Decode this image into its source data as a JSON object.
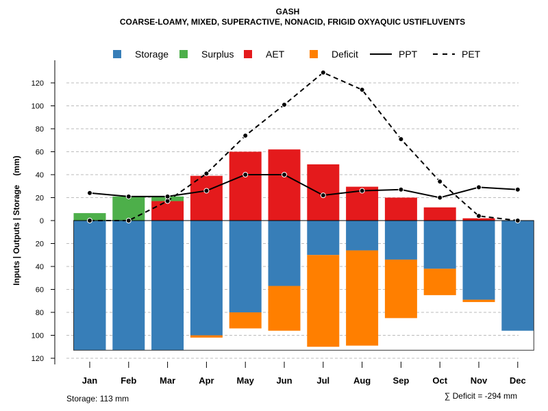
{
  "chart_data": {
    "type": "bar",
    "title": "GASH",
    "subtitle": "COARSE-LOAMY, MIXED, SUPERACTIVE, NONACID, FRIGID OXYAQUIC USTIFLUVENTS",
    "ylabel": "Inputs | Outputs | Storage    (mm)",
    "ylim": [
      -120,
      130
    ],
    "yticks": [
      120,
      100,
      80,
      60,
      40,
      20,
      0,
      20,
      40,
      60,
      80,
      100,
      120
    ],
    "categories": [
      "Jan",
      "Feb",
      "Mar",
      "Apr",
      "May",
      "Jun",
      "Jul",
      "Aug",
      "Sep",
      "Oct",
      "Nov",
      "Dec"
    ],
    "legend": [
      "Storage",
      "Surplus",
      "AET",
      "Deficit",
      "PPT",
      "PET"
    ],
    "legend_position": "top",
    "series": [
      {
        "name": "Storage",
        "color": "#377EB8",
        "values": [
          113,
          113,
          113,
          100,
          80,
          57,
          30,
          26,
          34,
          42,
          69,
          96
        ]
      },
      {
        "name": "Deficit",
        "color": "#FF7F00",
        "values": [
          0,
          0,
          0,
          2,
          14,
          39,
          80,
          83,
          51,
          23,
          2,
          0
        ]
      },
      {
        "name": "AET",
        "color": "#E41A1C",
        "values": [
          0,
          0,
          17,
          39,
          60,
          62,
          49,
          29.5,
          20,
          11.5,
          2,
          0
        ]
      },
      {
        "name": "Surplus",
        "color": "#4DAF4A",
        "values": [
          6.5,
          21,
          4,
          0,
          0,
          0,
          0,
          0,
          0,
          0,
          0,
          0
        ]
      },
      {
        "name": "PPT",
        "values": [
          24,
          21,
          21,
          26,
          40,
          40,
          22,
          26,
          27,
          20,
          29,
          27
        ]
      },
      {
        "name": "PET",
        "values": [
          0,
          0,
          17,
          41,
          74,
          101,
          129,
          114,
          71,
          34,
          4,
          0
        ]
      }
    ],
    "annotations": {
      "storage": "Storage: 113 mm",
      "deficit": "∑ Deficit = -294 mm"
    }
  }
}
